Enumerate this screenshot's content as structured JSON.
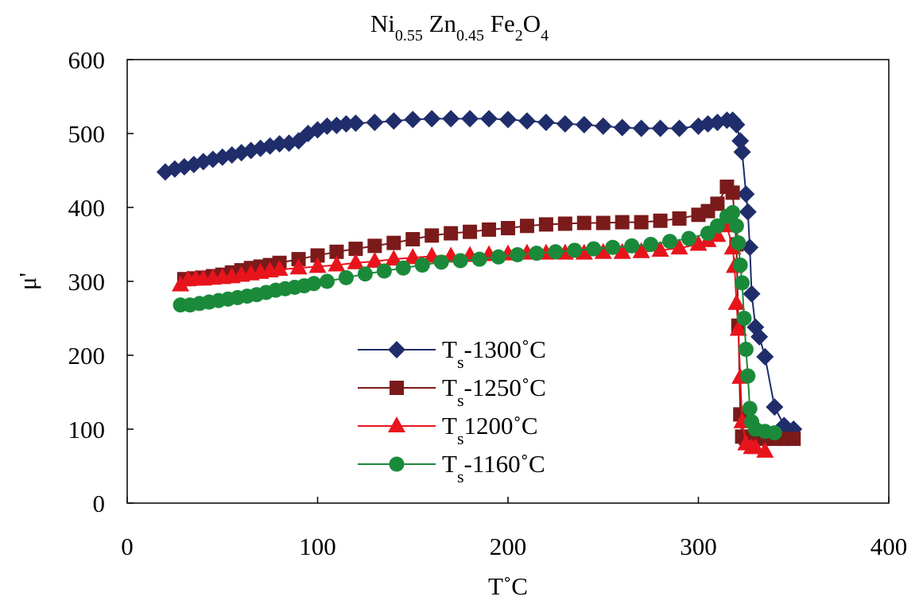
{
  "chart_data": {
    "type": "line",
    "title": [
      {
        "text": "Ni"
      },
      {
        "text": "0.55",
        "sub": true
      },
      {
        "text": " Zn"
      },
      {
        "text": "0.45",
        "sub": true
      },
      {
        "text": " Fe"
      },
      {
        "text": "2",
        "sub": true
      },
      {
        "text": "O"
      },
      {
        "text": "4",
        "sub": true
      }
    ],
    "x_label": "T˚C",
    "y_label": "μ'",
    "xlim": [
      0,
      400
    ],
    "xticks": [
      0,
      100,
      200,
      300,
      400
    ],
    "ylim": [
      0,
      600
    ],
    "yticks": [
      0,
      100,
      200,
      300,
      400,
      500,
      600
    ],
    "grid": false,
    "series": [
      {
        "name": [
          {
            "text": "T"
          },
          {
            "text": "s",
            "sub": true
          },
          {
            "text": "-1300˚C"
          }
        ],
        "color": "#1f2d6b",
        "marker": "diamond",
        "x": [
          20,
          25,
          30,
          35,
          40,
          45,
          50,
          55,
          60,
          65,
          70,
          75,
          80,
          85,
          90,
          95,
          100,
          105,
          110,
          115,
          120,
          130,
          140,
          150,
          160,
          170,
          180,
          190,
          200,
          210,
          220,
          230,
          240,
          250,
          260,
          270,
          280,
          290,
          300,
          305,
          310,
          315,
          318,
          320,
          322,
          323,
          325,
          326,
          327,
          328,
          330,
          332,
          335,
          340,
          345,
          350
        ],
        "values": [
          448,
          452,
          455,
          458,
          462,
          465,
          468,
          471,
          474,
          477,
          480,
          483,
          486,
          487,
          490,
          500,
          505,
          510,
          511,
          513,
          514,
          515,
          517,
          519,
          520,
          520,
          520,
          520,
          519,
          517,
          515,
          513,
          512,
          510,
          508,
          507,
          507,
          507,
          510,
          513,
          515,
          518,
          518,
          512,
          490,
          475,
          418,
          394,
          346,
          283,
          238,
          225,
          198,
          130,
          105,
          100
        ]
      },
      {
        "name": [
          {
            "text": "T"
          },
          {
            "text": "s",
            "sub": true
          },
          {
            "text": "-1250˚C"
          }
        ],
        "color": "#7b1a1a",
        "marker": "square",
        "x": [
          30,
          35,
          40,
          45,
          50,
          55,
          60,
          65,
          70,
          75,
          80,
          90,
          100,
          110,
          120,
          130,
          140,
          150,
          160,
          170,
          180,
          190,
          200,
          210,
          220,
          230,
          240,
          250,
          260,
          270,
          280,
          290,
          300,
          305,
          310,
          315,
          318,
          320,
          321,
          322,
          323,
          325,
          330,
          335,
          340,
          345,
          350
        ],
        "values": [
          303,
          304,
          305,
          307,
          309,
          312,
          315,
          318,
          320,
          322,
          325,
          330,
          335,
          340,
          344,
          348,
          352,
          357,
          362,
          365,
          367,
          370,
          372,
          375,
          377,
          378,
          379,
          379,
          380,
          380,
          382,
          385,
          390,
          395,
          405,
          428,
          420,
          350,
          240,
          120,
          90,
          88,
          87,
          87,
          87,
          87,
          87
        ]
      },
      {
        "name": [
          {
            "text": "T"
          },
          {
            "text": "s",
            "sub": true
          },
          {
            "text": "1200˚C"
          }
        ],
        "color": "#e8141c",
        "marker": "triangle",
        "x": [
          28,
          32,
          36,
          40,
          45,
          50,
          55,
          60,
          65,
          70,
          75,
          80,
          90,
          100,
          110,
          120,
          130,
          140,
          150,
          160,
          170,
          180,
          190,
          200,
          210,
          220,
          230,
          240,
          250,
          260,
          270,
          280,
          290,
          300,
          305,
          310,
          315,
          318,
          319,
          320,
          321,
          322,
          323,
          325,
          328,
          330,
          335
        ],
        "values": [
          295,
          302,
          303,
          303,
          304,
          305,
          306,
          308,
          310,
          312,
          314,
          316,
          318,
          320,
          322,
          325,
          327,
          330,
          332,
          334,
          334,
          335,
          336,
          337,
          338,
          338,
          338,
          338,
          339,
          339,
          340,
          342,
          345,
          350,
          355,
          362,
          375,
          345,
          320,
          270,
          235,
          170,
          110,
          80,
          75,
          75,
          70
        ]
      },
      {
        "name": [
          {
            "text": "T"
          },
          {
            "text": "s",
            "sub": true
          },
          {
            "text": "-1160˚C"
          }
        ],
        "color": "#1a8a3a",
        "marker": "circle",
        "x": [
          28,
          33,
          38,
          43,
          48,
          53,
          58,
          63,
          68,
          73,
          78,
          83,
          88,
          93,
          98,
          105,
          115,
          125,
          135,
          145,
          155,
          165,
          175,
          185,
          195,
          205,
          215,
          225,
          235,
          245,
          255,
          265,
          275,
          285,
          295,
          305,
          310,
          315,
          318,
          320,
          321,
          322,
          323,
          324,
          325,
          326,
          327,
          328,
          330,
          335,
          340
        ],
        "values": [
          268,
          268,
          270,
          272,
          274,
          276,
          278,
          280,
          282,
          285,
          288,
          290,
          292,
          294,
          297,
          300,
          305,
          310,
          314,
          318,
          322,
          326,
          328,
          330,
          333,
          336,
          338,
          340,
          342,
          344,
          346,
          348,
          350,
          354,
          358,
          365,
          375,
          388,
          393,
          375,
          352,
          322,
          298,
          250,
          208,
          172,
          128,
          110,
          100,
          97,
          95
        ]
      }
    ]
  }
}
